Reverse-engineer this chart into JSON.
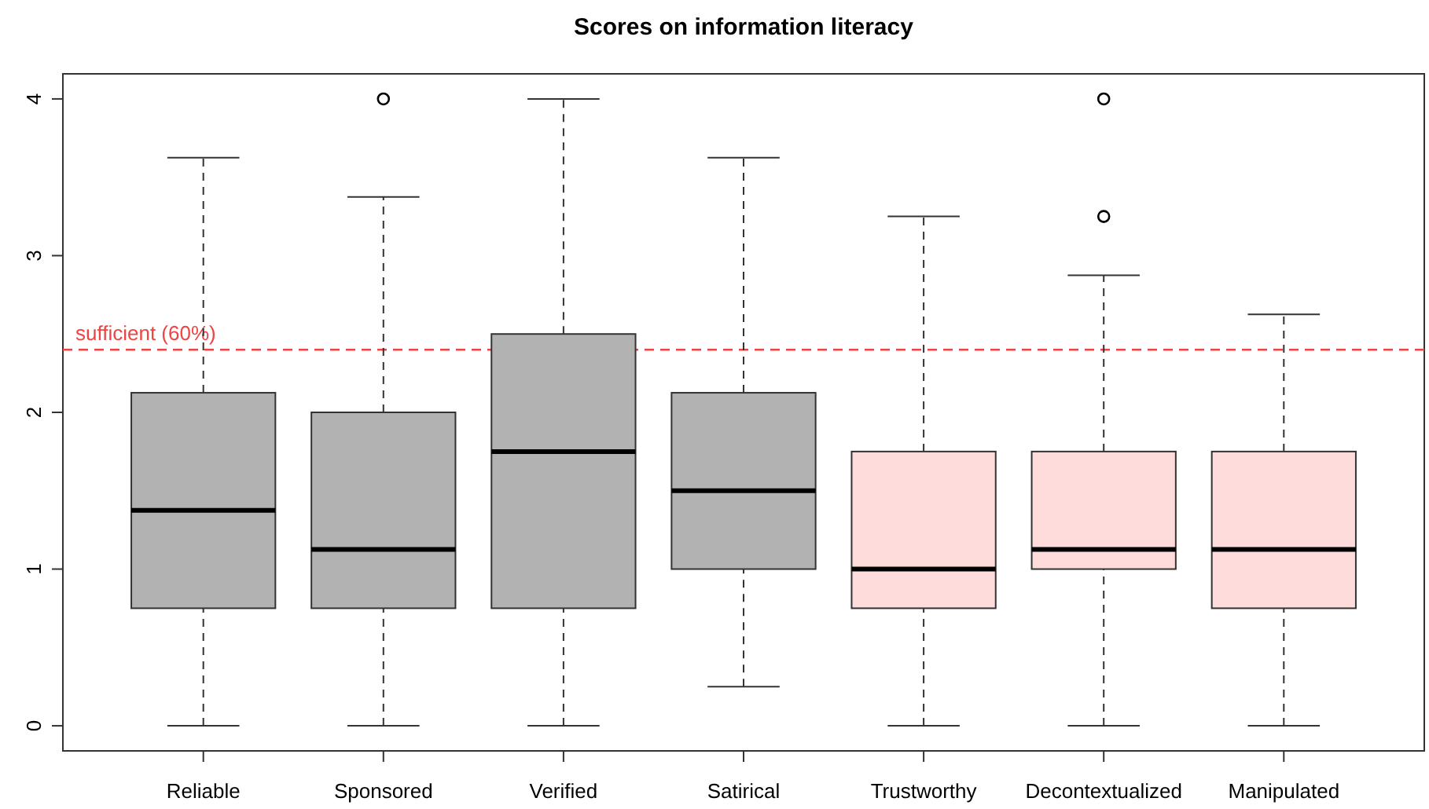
{
  "chart_data": {
    "type": "box",
    "title": "Scores on information literacy",
    "categories": [
      "Reliable",
      "Sponsored",
      "Verified",
      "Satirical",
      "Trustworthy",
      "Decontextualized",
      "Manipulated"
    ],
    "boxes": [
      {
        "low": 0,
        "q1": 0.75,
        "median": 1.375,
        "q3": 2.125,
        "high": 3.625
      },
      {
        "low": 0,
        "q1": 0.75,
        "median": 1.125,
        "q3": 2,
        "high": 3.375,
        "outliers": [
          4
        ]
      },
      {
        "low": 0,
        "q1": 0.75,
        "median": 1.75,
        "q3": 2.5,
        "high": 4
      },
      {
        "low": 0.25,
        "q1": 1,
        "median": 1.5,
        "q3": 2.125,
        "high": 3.625
      },
      {
        "low": 0,
        "q1": 0.75,
        "median": 1,
        "q3": 1.75,
        "high": 3.25
      },
      {
        "low": 0,
        "q1": 1,
        "median": 1.125,
        "q3": 1.75,
        "high": 2.875,
        "outliers": [
          3.25,
          4
        ]
      },
      {
        "low": 0,
        "q1": 0.75,
        "median": 1.125,
        "q3": 1.75,
        "high": 2.625
      }
    ],
    "colors": [
      "#b2b2b2",
      "#b2b2b2",
      "#b2b2b2",
      "#b2b2b2",
      "#ffdcdc",
      "#ffdcdc",
      "#ffdcdc"
    ],
    "ylim": [
      -0.16,
      4.16
    ],
    "yticks": [
      0,
      1,
      2,
      3,
      4
    ],
    "ref_lines": [
      {
        "axis": "y",
        "value": 2.4,
        "label": "sufficient (60%)",
        "color": "#ee4444",
        "line_style": "dashed"
      }
    ]
  }
}
